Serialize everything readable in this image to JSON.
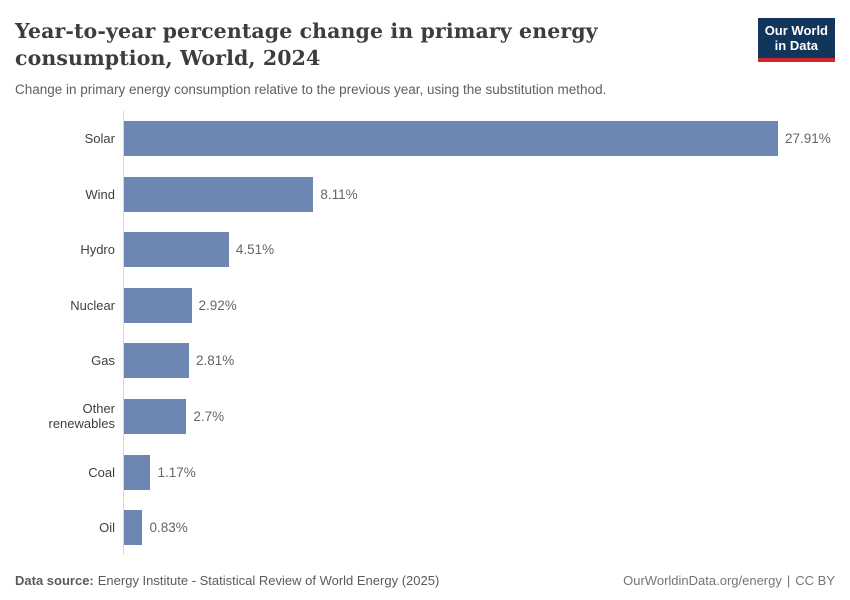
{
  "header": {
    "title": "Year-to-year percentage change in primary energy consumption, World, 2024",
    "subtitle": "Change in primary energy consumption relative to the previous year, using the substitution method.",
    "logo": {
      "line1": "Our World",
      "line2": "in Data",
      "background_color": "#12355c",
      "stripe_color": "#d0282a"
    }
  },
  "chart_data": {
    "type": "bar",
    "orientation": "horizontal",
    "title": "Year-to-year percentage change in primary energy consumption, World, 2024",
    "xlabel": "",
    "ylabel": "",
    "categories": [
      "Solar",
      "Wind",
      "Hydro",
      "Nuclear",
      "Gas",
      "Other renewables",
      "Coal",
      "Oil"
    ],
    "values": [
      27.91,
      8.11,
      4.51,
      2.92,
      2.81,
      2.7,
      1.17,
      0.83
    ],
    "value_labels": [
      "27.91%",
      "8.11%",
      "4.51%",
      "2.92%",
      "2.81%",
      "2.7%",
      "1.17%",
      "0.83%"
    ],
    "unit": "%",
    "xlim": [
      0,
      30
    ],
    "grid": false,
    "legend": false,
    "bar_color": "#6d87b2"
  },
  "footer": {
    "source_label": "Data source:",
    "source_text": "Energy Institute - Statistical Review of World Energy (2025)",
    "link_text": "OurWorldinData.org/energy",
    "separator": "|",
    "license_text": "CC BY"
  }
}
